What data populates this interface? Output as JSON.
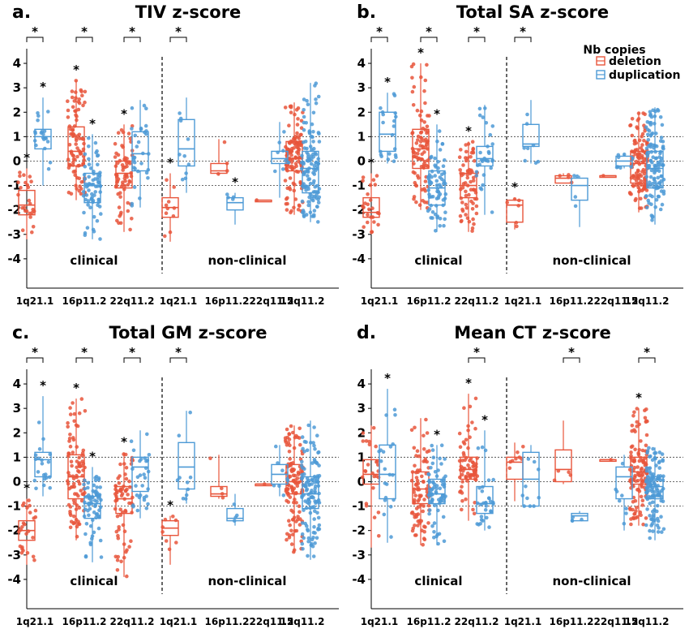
{
  "legend": {
    "title": "Nb copies",
    "items": [
      {
        "label": "deletion",
        "color": "#e8553b"
      },
      {
        "label": "duplication",
        "color": "#4d9ad6"
      }
    ]
  },
  "colors": {
    "deletion": "#e8553b",
    "duplication": "#4d9ad6"
  },
  "chart_data": [
    {
      "type": "box",
      "letter": "a.",
      "title": "TIV z-score",
      "ylim": [
        -5.2,
        4.6
      ],
      "yticks": [
        -4,
        -3,
        -2,
        -1,
        0,
        1,
        2,
        3,
        4
      ],
      "categories": [
        "1q21.1",
        "16p11.2",
        "22q11.2",
        "1q21.1",
        "16p11.2",
        "22q11.2",
        "15q11.2"
      ],
      "group_labels": [
        "clinical",
        "non-clinical"
      ],
      "bracket_stars": [
        "*",
        "*",
        "*",
        "*"
      ],
      "series": [
        {
          "name": "deletion",
          "boxes": [
            [
              -3.2,
              -2.2,
              -1.8,
              -1.2,
              -0.3
            ],
            [
              -1.6,
              -0.2,
              0.4,
              1.4,
              3.3
            ],
            [
              -2.9,
              -1.1,
              -0.5,
              0.0,
              1.5
            ],
            [
              -3.3,
              -2.3,
              -1.9,
              -1.5,
              -0.5
            ],
            [
              -0.6,
              -0.5,
              -0.4,
              -0.1,
              0.9
            ],
            [
              -1.6,
              -1.6,
              -1.6,
              -1.6,
              -1.6
            ],
            [
              -2.2,
              -0.4,
              0.1,
              0.8,
              2.4
            ]
          ],
          "n": [
            25,
            90,
            70,
            10,
            4,
            1,
            120
          ],
          "stars": [
            "*",
            "*",
            "*",
            "*",
            "",
            "",
            ""
          ]
        },
        {
          "name": "duplication",
          "boxes": [
            [
              -1.0,
              0.5,
              1.0,
              1.3,
              2.6
            ],
            [
              -3.2,
              -1.7,
              -1.0,
              -0.5,
              1.1
            ],
            [
              -1.9,
              -0.4,
              0.3,
              1.2,
              2.5
            ],
            [
              -1.3,
              -0.2,
              0.5,
              1.7,
              2.6
            ],
            [
              -2.6,
              -2.0,
              -1.7,
              -1.5,
              -1.3
            ],
            [
              -1.5,
              -0.1,
              0.1,
              0.4,
              1.6
            ],
            [
              -2.5,
              -1.3,
              -0.3,
              0.4,
              3.2
            ]
          ],
          "n": [
            20,
            70,
            30,
            10,
            4,
            8,
            120
          ],
          "stars": [
            "*",
            "*",
            "",
            "",
            "*",
            "",
            ""
          ]
        }
      ]
    },
    {
      "type": "box",
      "letter": "b.",
      "title": "Total SA z-score",
      "ylim": [
        -5.2,
        4.6
      ],
      "yticks": [
        -4,
        -3,
        -2,
        -1,
        0,
        1,
        2,
        3,
        4
      ],
      "categories": [
        "1q21.1",
        "16p11.2",
        "22q11.2",
        "1q21.1",
        "16p11.2",
        "22q11.2",
        "15q11.2"
      ],
      "group_labels": [
        "clinical",
        "non-clinical"
      ],
      "bracket_stars": [
        "*",
        "*",
        "*",
        "*"
      ],
      "series": [
        {
          "name": "deletion",
          "boxes": [
            [
              -3.0,
              -2.3,
              -2.1,
              -1.5,
              -0.5
            ],
            [
              -2.0,
              -0.3,
              0.5,
              1.3,
              4.0
            ],
            [
              -2.9,
              -1.5,
              -1.0,
              -0.5,
              0.8
            ],
            [
              -2.8,
              -2.5,
              -1.8,
              -1.6,
              -1.5
            ],
            [
              -0.9,
              -0.9,
              -0.7,
              -0.6,
              -0.5
            ],
            [
              -0.6,
              -0.6,
              -0.6,
              -0.6,
              -0.6
            ],
            [
              -2.1,
              -0.9,
              -0.1,
              0.4,
              2.0
            ]
          ],
          "n": [
            25,
            90,
            70,
            6,
            4,
            1,
            120
          ],
          "stars": [
            "*",
            "*",
            "*",
            "*",
            "",
            "",
            ""
          ]
        },
        {
          "name": "duplication",
          "boxes": [
            [
              -0.1,
              0.4,
              1.1,
              2.0,
              2.8
            ],
            [
              -2.9,
              -1.8,
              -1.1,
              -0.4,
              1.5
            ],
            [
              -2.2,
              -0.2,
              0.1,
              0.6,
              2.3
            ],
            [
              -0.1,
              0.6,
              0.7,
              1.5,
              2.5
            ],
            [
              -2.7,
              -1.6,
              -1.0,
              -0.7,
              -0.6
            ],
            [
              -0.3,
              -0.2,
              0.0,
              0.2,
              0.3
            ],
            [
              -2.6,
              -1.1,
              -0.3,
              0.4,
              2.2
            ]
          ],
          "n": [
            20,
            70,
            30,
            8,
            4,
            8,
            120
          ],
          "stars": [
            "*",
            "*",
            "",
            "",
            "",
            "",
            ""
          ]
        }
      ]
    },
    {
      "type": "box",
      "letter": "c.",
      "title": "Total GM z-score",
      "ylim": [
        -5.2,
        4.6
      ],
      "yticks": [
        -4,
        -3,
        -2,
        -1,
        0,
        1,
        2,
        3,
        4
      ],
      "categories": [
        "1q21.1",
        "16p11.2",
        "22q11.2",
        "1q21.1",
        "16p11.2",
        "22q11.2",
        "15q11.2"
      ],
      "group_labels": [
        "clinical",
        "non-clinical"
      ],
      "bracket_stars": [
        "*",
        "*",
        "*",
        "*"
      ],
      "series": [
        {
          "name": "deletion",
          "boxes": [
            [
              -3.4,
              -2.4,
              -2.0,
              -1.6,
              -0.7
            ],
            [
              -2.4,
              -0.7,
              0.2,
              1.1,
              3.4
            ],
            [
              -3.9,
              -1.3,
              -0.7,
              -0.2,
              1.2
            ],
            [
              -3.4,
              -2.2,
              -1.9,
              -1.6,
              -1.4
            ],
            [
              -0.7,
              -0.6,
              -0.5,
              -0.2,
              1.1
            ],
            [
              -0.1,
              -0.1,
              -0.1,
              -0.1,
              -0.1
            ],
            [
              -2.9,
              -0.5,
              0.0,
              0.7,
              2.3
            ]
          ],
          "n": [
            25,
            90,
            70,
            8,
            4,
            1,
            120
          ],
          "stars": [
            "*",
            "*",
            "*",
            "*",
            "",
            "",
            ""
          ]
        },
        {
          "name": "duplication",
          "boxes": [
            [
              -0.6,
              0.2,
              0.9,
              1.2,
              3.5
            ],
            [
              -3.3,
              -1.5,
              -0.9,
              -0.6,
              0.6
            ],
            [
              -1.5,
              -0.4,
              0.6,
              1.0,
              2.1
            ],
            [
              -0.9,
              -0.3,
              0.6,
              1.6,
              2.9
            ],
            [
              -1.8,
              -1.6,
              -1.5,
              -1.1,
              -0.5
            ],
            [
              -0.6,
              -0.1,
              0.3,
              0.7,
              1.5
            ],
            [
              -3.2,
              -1.1,
              -0.5,
              0.2,
              2.5
            ]
          ],
          "n": [
            20,
            70,
            30,
            10,
            4,
            8,
            120
          ],
          "stars": [
            "*",
            "*",
            "",
            "",
            "",
            "",
            ""
          ]
        }
      ]
    },
    {
      "type": "box",
      "letter": "d.",
      "title": "Mean CT z-score",
      "ylim": [
        -5.2,
        4.6
      ],
      "yticks": [
        -4,
        -3,
        -2,
        -1,
        0,
        1,
        2,
        3,
        4
      ],
      "categories": [
        "1q21.1",
        "16p11.2",
        "22q11.2",
        "1q21.1",
        "16p11.2",
        "22q11.2",
        "15q11.2"
      ],
      "group_labels": [
        "clinical",
        "non-clinical"
      ],
      "bracket_stars": [
        "*",
        "*",
        "*"
      ],
      "series": [
        {
          "name": "deletion",
          "boxes": [
            [
              -2.7,
              -0.1,
              0.3,
              0.9,
              2.3
            ],
            [
              -2.6,
              -0.9,
              -0.3,
              0.4,
              2.6
            ],
            [
              -1.6,
              0.1,
              0.5,
              1.0,
              3.6
            ],
            [
              -0.8,
              0.1,
              0.8,
              1.0,
              1.6
            ],
            [
              -0.1,
              0.0,
              0.5,
              1.3,
              2.5
            ],
            [
              0.9,
              0.9,
              0.9,
              0.9,
              0.9
            ],
            [
              -1.8,
              -0.1,
              0.4,
              1.0,
              3.0
            ]
          ],
          "n": [
            25,
            90,
            70,
            8,
            4,
            1,
            120
          ],
          "stars": [
            "",
            "",
            "*",
            "",
            "",
            "",
            "*"
          ]
        },
        {
          "name": "duplication",
          "boxes": [
            [
              -2.5,
              -0.7,
              0.3,
              1.5,
              3.8
            ],
            [
              -2.6,
              -0.9,
              -0.5,
              0.1,
              1.5
            ],
            [
              -2.0,
              -1.3,
              -0.9,
              -0.2,
              2.1
            ],
            [
              -1.0,
              -1.0,
              0.1,
              1.2,
              1.5
            ],
            [
              -1.6,
              -1.6,
              -1.4,
              -1.3,
              -1.2
            ],
            [
              -2.0,
              -0.7,
              0.2,
              0.6,
              1.1
            ],
            [
              -2.4,
              -0.7,
              -0.2,
              0.2,
              1.4
            ]
          ],
          "n": [
            20,
            70,
            30,
            10,
            4,
            8,
            120
          ],
          "stars": [
            "*",
            "*",
            "*",
            "",
            "",
            "",
            ""
          ]
        }
      ]
    }
  ]
}
